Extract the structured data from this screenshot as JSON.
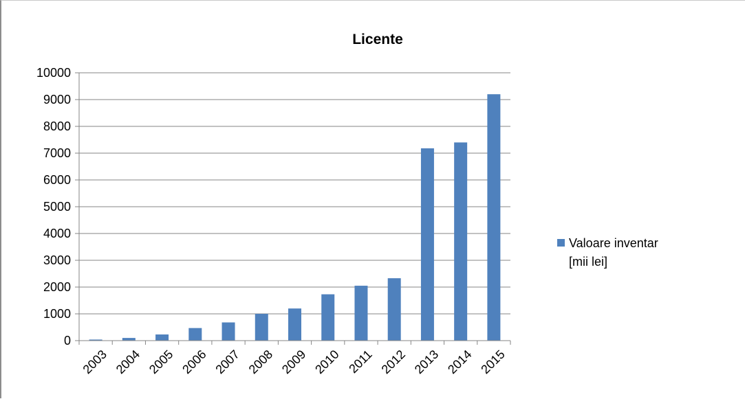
{
  "chart_data": {
    "type": "bar",
    "title": "Licente",
    "categories": [
      "2003",
      "2004",
      "2005",
      "2006",
      "2007",
      "2008",
      "2009",
      "2010",
      "2011",
      "2012",
      "2013",
      "2014",
      "2015"
    ],
    "series": [
      {
        "name": "Valoare inventar [mii lei]",
        "legend_lines": [
          "Valoare inventar",
          "[mii lei]"
        ],
        "values": [
          40,
          100,
          230,
          470,
          680,
          1000,
          1200,
          1730,
          2050,
          2330,
          7180,
          7400,
          9200
        ],
        "color": "#4f81bd"
      }
    ],
    "ylim": [
      0,
      10000
    ],
    "yticks": [
      0,
      1000,
      2000,
      3000,
      4000,
      5000,
      6000,
      7000,
      8000,
      9000,
      10000
    ],
    "grid": true,
    "legend_position": "right"
  }
}
